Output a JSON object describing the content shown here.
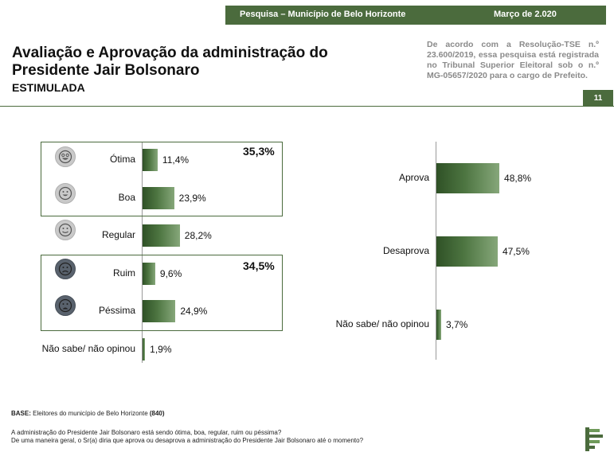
{
  "header": {
    "survey": "Pesquisa – Município de Belo Horizonte",
    "date": "Março de  2.020"
  },
  "title": "Avaliação e Aprovação da administração do Presidente Jair Bolsonaro",
  "subtitle": "ESTIMULADA",
  "registration": "De acordo com a Resolução-TSE n.º 23.600/2019, essa pesquisa está registrada no Tribunal Superior Eleitoral sob o n.º MG-05657/2020 para o cargo de Prefeito.",
  "page_number": "11",
  "groups": {
    "positive_total": "35,3%",
    "negative_total": "34,5%"
  },
  "icons": {
    "otima": "very-happy-face-icon",
    "boa": "happy-face-icon",
    "regular": "smile-face-icon",
    "ruim": "sad-face-icon",
    "pessima": "very-sad-face-icon",
    "logo": "logo-icon"
  },
  "colors": {
    "brand": "#4b6b3d",
    "bar_dark": "#2f5126",
    "bar_light": "#86a77a",
    "face_light": "#c9c9c9",
    "face_dark": "#59626d"
  },
  "chart_data": [
    {
      "type": "bar",
      "orientation": "horizontal",
      "categories": [
        "Ótima",
        "Boa",
        "Regular",
        "Ruim",
        "Péssima",
        "Não sabe/ não opinou"
      ],
      "values": [
        11.4,
        23.9,
        28.2,
        9.6,
        24.9,
        1.9
      ],
      "value_labels": [
        "11,4%",
        "23,9%",
        "28,2%",
        "9,6%",
        "24,9%",
        "1,9%"
      ],
      "xlim": [
        0,
        100
      ]
    },
    {
      "type": "bar",
      "orientation": "horizontal",
      "categories": [
        "Aprova",
        "Desaprova",
        "Não sabe/ não opinou"
      ],
      "values": [
        48.8,
        47.5,
        3.7
      ],
      "value_labels": [
        "48,8%",
        "47,5%",
        "3,7%"
      ],
      "xlim": [
        0,
        100
      ]
    }
  ],
  "footer": {
    "base_label": "BASE:",
    "base_text": " Eleitores do município de Belo Horizonte ",
    "base_count": "(840)",
    "question1": "A administração do Presidente Jair Bolsonaro está sendo ótima, boa, regular, ruim ou péssima?",
    "question2": "De uma maneira geral, o Sr(a) diria que aprova ou desaprova a administração do Presidente Jair Bolsonaro até o momento?"
  }
}
